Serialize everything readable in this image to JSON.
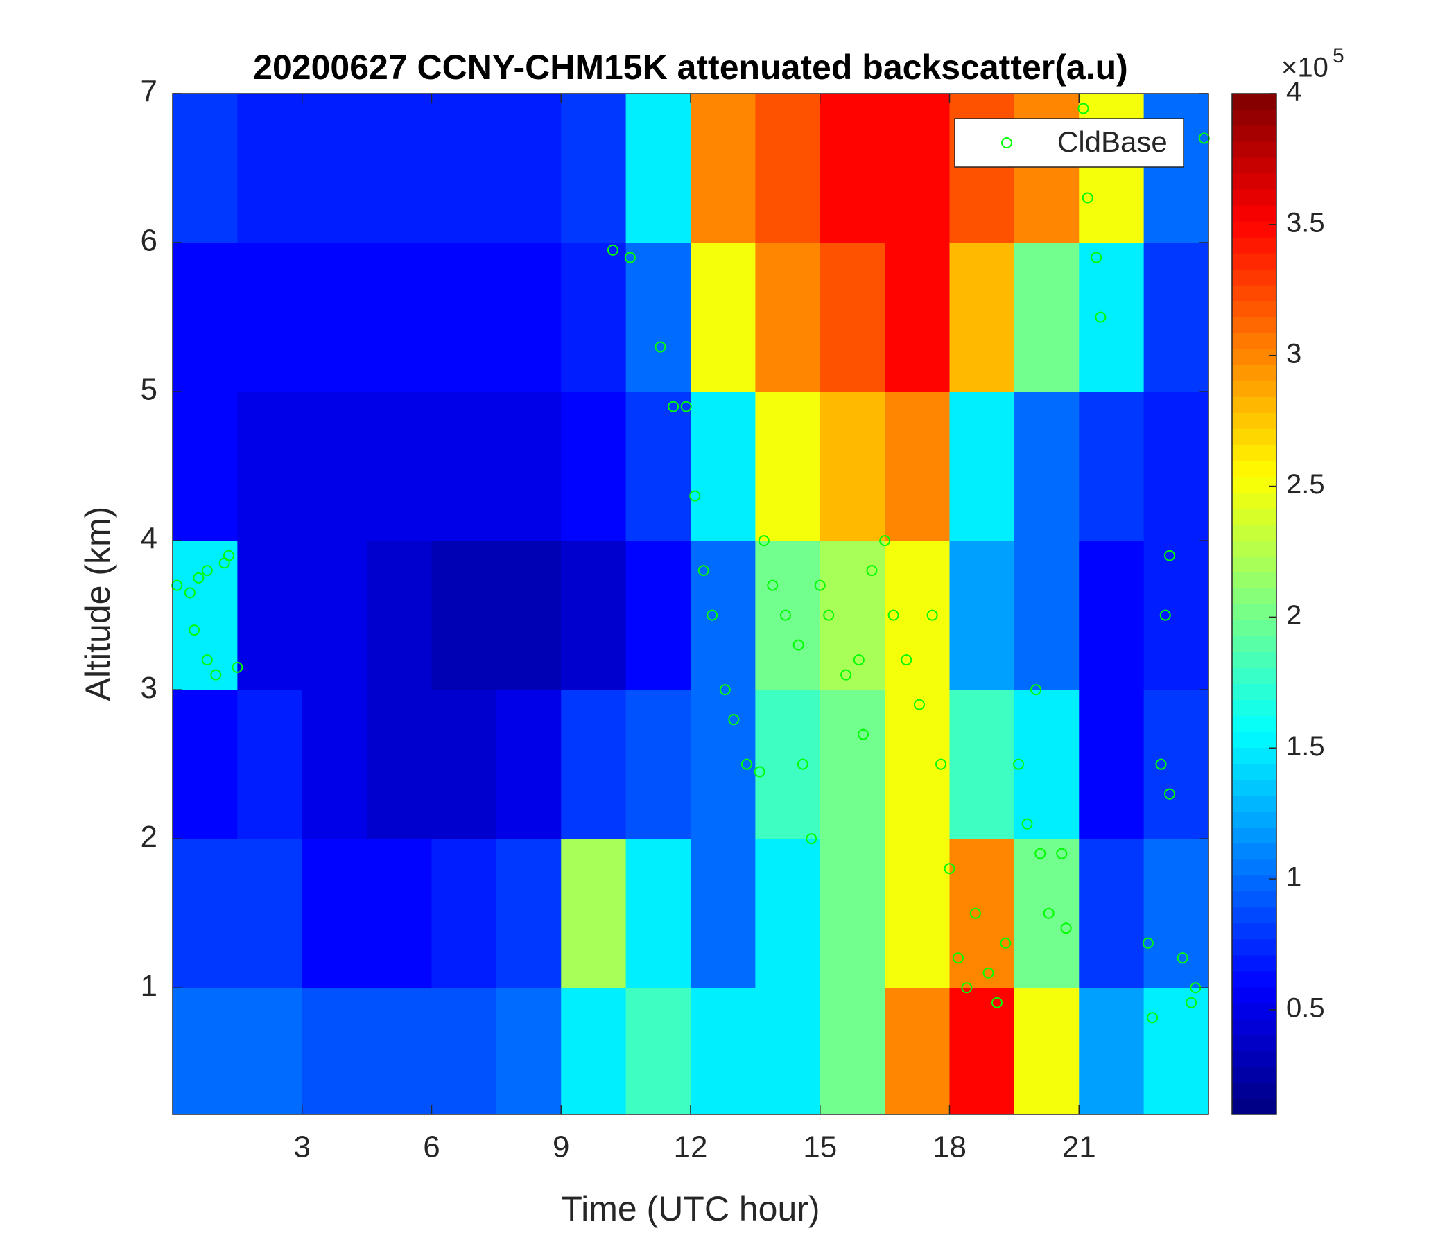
{
  "chart_data": {
    "type": "heatmap",
    "title": "20200627 CCNY-CHM15K attenuated backscatter(a.u)",
    "x_label": "Time (UTC hour)",
    "y_label": "Altitude (km)",
    "xlim": [
      0,
      24
    ],
    "xticks": [
      3,
      6,
      9,
      12,
      15,
      18,
      21
    ],
    "ylim": [
      0.15,
      7
    ],
    "yticks": [
      1,
      2,
      3,
      4,
      5,
      6,
      7
    ],
    "x_edges": [
      0,
      1.5,
      3,
      4.5,
      6,
      7.5,
      9,
      10.5,
      12,
      13.5,
      15,
      16.5,
      18,
      19.5,
      21,
      22.5,
      24
    ],
    "y_edges": [
      0.15,
      1,
      2,
      3,
      4,
      5,
      6,
      7
    ],
    "z": [
      [
        1.0,
        0.8,
        0.6,
        1.5,
        0.6,
        0.6,
        0.8
      ],
      [
        1.0,
        0.8,
        0.7,
        0.5,
        0.5,
        0.6,
        0.7
      ],
      [
        0.9,
        0.6,
        0.5,
        0.5,
        0.5,
        0.6,
        0.7
      ],
      [
        0.9,
        0.6,
        0.4,
        0.4,
        0.5,
        0.6,
        0.7
      ],
      [
        0.9,
        0.7,
        0.4,
        0.3,
        0.5,
        0.6,
        0.7
      ],
      [
        1.0,
        0.8,
        0.5,
        0.3,
        0.5,
        0.6,
        0.7
      ],
      [
        1.5,
        2.2,
        0.8,
        0.4,
        0.6,
        0.7,
        0.8
      ],
      [
        1.8,
        1.5,
        0.9,
        0.6,
        0.8,
        1.0,
        1.5
      ],
      [
        1.5,
        1.0,
        1.0,
        1.0,
        1.5,
        2.5,
        3.0
      ],
      [
        1.5,
        1.5,
        1.8,
        2.0,
        2.5,
        3.0,
        3.2
      ],
      [
        2.0,
        2.0,
        2.0,
        2.2,
        2.8,
        3.2,
        3.5
      ],
      [
        3.0,
        2.5,
        2.5,
        2.5,
        3.0,
        3.5,
        3.5
      ],
      [
        3.5,
        3.0,
        1.8,
        1.2,
        1.5,
        2.8,
        3.2
      ],
      [
        2.5,
        2.0,
        1.5,
        1.0,
        1.0,
        2.0,
        3.0
      ],
      [
        1.2,
        0.8,
        0.6,
        0.6,
        0.8,
        1.5,
        2.5
      ],
      [
        1.5,
        1.0,
        0.8,
        0.7,
        0.7,
        0.8,
        1.0
      ]
    ],
    "colormap": "jet",
    "clim": [
      0.1,
      4
    ],
    "cticks": [
      0.5,
      1,
      1.5,
      2,
      2.5,
      3,
      3.5,
      4
    ],
    "colorbar_multiplier": {
      "base": "×10",
      "exponent": "5"
    },
    "legend": "northeast",
    "overlay": {
      "type": "scatter",
      "name": "CldBase",
      "color": "#00ff00",
      "x": [
        0.1,
        0.4,
        0.6,
        0.8,
        0.5,
        0.8,
        1.0,
        1.2,
        1.3,
        1.5,
        10.2,
        10.6,
        11.3,
        11.6,
        11.9,
        12.1,
        12.3,
        12.5,
        12.8,
        13.0,
        13.3,
        13.6,
        13.7,
        13.9,
        14.2,
        14.5,
        14.6,
        14.8,
        15.0,
        15.2,
        15.6,
        15.9,
        16.0,
        16.2,
        16.5,
        16.7,
        17.0,
        17.3,
        17.6,
        17.8,
        18.0,
        18.2,
        18.4,
        18.6,
        18.9,
        19.1,
        19.3,
        19.6,
        19.8,
        20.1,
        20.3,
        20.6,
        20.7,
        21.2,
        21.4,
        21.5,
        21.1,
        22.6,
        22.7,
        22.9,
        23.0,
        23.1,
        23.4,
        23.6,
        23.9,
        23.7,
        23.1,
        20.0
      ],
      "y": [
        3.7,
        3.65,
        3.75,
        3.8,
        3.4,
        3.2,
        3.1,
        3.85,
        3.9,
        3.15,
        5.95,
        5.9,
        5.3,
        4.9,
        4.9,
        4.3,
        3.8,
        3.5,
        3.0,
        2.8,
        2.5,
        2.45,
        4.0,
        3.7,
        3.5,
        3.3,
        2.5,
        2.0,
        3.7,
        3.5,
        3.1,
        3.2,
        2.7,
        3.8,
        4.0,
        3.5,
        3.2,
        2.9,
        3.5,
        2.5,
        1.8,
        1.2,
        1.0,
        1.5,
        1.1,
        0.9,
        1.3,
        2.5,
        2.1,
        1.9,
        1.5,
        1.9,
        1.4,
        6.3,
        5.9,
        5.5,
        6.9,
        1.3,
        0.8,
        2.5,
        3.5,
        2.3,
        1.2,
        0.9,
        6.7,
        1.0,
        3.9,
        3.0
      ]
    }
  }
}
